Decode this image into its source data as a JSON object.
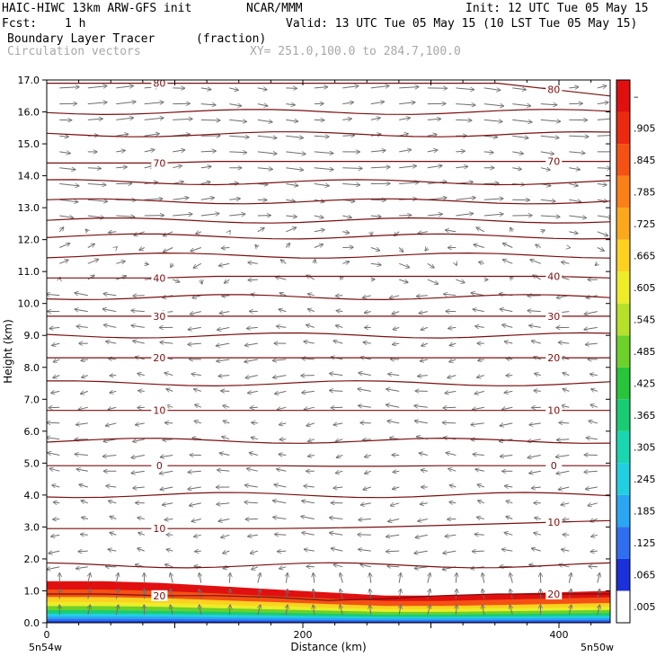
{
  "header": {
    "model": "HAIC-HIWC 13km ARW-GFS init",
    "org": "NCAR/MMM",
    "init": "Init: 12 UTC Tue 05 May 15",
    "fcst_label": "Fcst:",
    "fcst_value": "1 h",
    "valid": "Valid: 13 UTC Tue 05 May 15 (10 LST Tue 05 May 15)",
    "field": "Boundary Layer Tracer",
    "units": "(fraction)",
    "overlay": "Circulation vectors",
    "xy": "XY= 251.0,100.0 to 284.7,100.0"
  },
  "chart_data": {
    "type": "cross-section",
    "xlabel": "Distance (km)",
    "ylabel": "Height (km)",
    "xlim": [
      0,
      440
    ],
    "ylim": [
      0,
      17
    ],
    "x_ticks": [
      "0",
      "200",
      "400"
    ],
    "x_endpoint_labels": [
      "5n54w",
      "5n50w"
    ],
    "y_ticks": [
      "0.0",
      "1.0",
      "2.0",
      "3.0",
      "4.0",
      "5.0",
      "6.0",
      "7.0",
      "8.0",
      "9.0",
      "10.0",
      "11.0",
      "12.0",
      "13.0",
      "14.0",
      "15.0",
      "16.0",
      "17.0"
    ],
    "colorbar": {
      "labels": [
        ".005",
        ".065",
        ".125",
        ".185",
        ".245",
        ".305",
        ".365",
        ".425",
        ".485",
        ".545",
        ".605",
        ".665",
        ".725",
        ".785",
        ".845",
        ".905",
        "–"
      ],
      "colors": [
        "#ffffff",
        "#1a30d8",
        "#2f6ef0",
        "#2aa6f2",
        "#22cfe0",
        "#1ad6b0",
        "#19cc74",
        "#28c43a",
        "#6cd12a",
        "#b6e02a",
        "#ecec28",
        "#fcd120",
        "#fca81c",
        "#fa8018",
        "#f45214",
        "#ec2a10",
        "#e01010"
      ]
    },
    "temperature_contours": [
      {
        "label": "80",
        "heights": [
          16.9,
          16.9,
          16.9,
          16.9,
          16.9,
          16.9,
          16.9,
          16.9,
          16.9,
          16.7,
          16.5
        ]
      },
      {
        "label": "70",
        "heights": [
          14.4,
          14.4,
          14.4,
          14.45,
          14.45,
          14.45,
          14.45,
          14.45,
          14.45,
          14.45,
          14.45
        ]
      },
      {
        "label": "40",
        "heights": [
          10.8,
          10.8,
          10.8,
          10.85,
          10.85,
          10.85,
          10.85,
          10.85,
          10.85,
          10.85,
          10.8
        ]
      },
      {
        "label": "30",
        "heights": [
          9.6,
          9.6,
          9.6,
          9.6,
          9.6,
          9.6,
          9.6,
          9.6,
          9.6,
          9.6,
          9.6
        ]
      },
      {
        "label": "20",
        "heights": [
          8.3,
          8.3,
          8.3,
          8.3,
          8.3,
          8.3,
          8.3,
          8.3,
          8.3,
          8.3,
          8.3
        ]
      },
      {
        "label": "10",
        "heights": [
          6.65,
          6.65,
          6.65,
          6.65,
          6.65,
          6.65,
          6.65,
          6.65,
          6.65,
          6.65,
          6.65
        ]
      },
      {
        "label": "0",
        "heights": [
          4.92,
          4.92,
          4.92,
          4.92,
          4.92,
          4.9,
          4.9,
          4.92,
          4.92,
          4.92,
          4.92
        ]
      },
      {
        "label": "10",
        "heights": [
          2.95,
          2.95,
          2.95,
          2.95,
          2.95,
          2.97,
          3.0,
          3.05,
          3.1,
          3.15,
          3.2
        ]
      },
      {
        "label": "20",
        "heights": [
          0.9,
          0.9,
          0.85,
          0.85,
          0.8,
          0.7,
          0.75,
          0.85,
          0.9,
          0.9,
          0.9
        ]
      }
    ],
    "unlabeled_contour_heights": [
      16.0,
      15.3,
      13.8,
      13.2,
      12.6,
      12.1,
      11.5,
      10.2,
      9.0,
      7.5,
      5.7,
      4.0,
      1.8
    ],
    "pbl_top_km": [
      1.3,
      1.3,
      1.25,
      1.15,
      1.05,
      0.95,
      0.85,
      0.85,
      0.9,
      0.95,
      1.0
    ]
  }
}
